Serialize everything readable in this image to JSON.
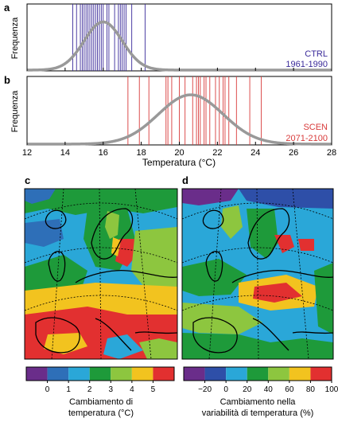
{
  "panels": {
    "a": {
      "label": "a",
      "ylabel": "Frequenza",
      "annotation_line1": "CTRL",
      "annotation_line2": "1961-1990",
      "color": "#3a2a9a"
    },
    "b": {
      "label": "b",
      "ylabel": "Frequenza",
      "annotation_line1": "SCEN",
      "annotation_line2": "2071-2100",
      "color": "#d83a3a"
    },
    "c": {
      "label": "c",
      "legend_title_line1": "Cambiamento di",
      "legend_title_line2": "temperatura  (°C)"
    },
    "d": {
      "label": "d",
      "legend_title_line1": "Cambiamento nella",
      "legend_title_line2": "variabilità di temperatura (%)"
    }
  },
  "chart_data": [
    {
      "type": "histogram-lines",
      "panel": "a",
      "xlim": [
        12,
        28
      ],
      "xticks": [
        12,
        14,
        16,
        18,
        20,
        22,
        24,
        26,
        28
      ],
      "ylabel": "Frequenza",
      "line_color": "#3a2a9a",
      "curve_color": "#999999",
      "values": [
        14.4,
        14.6,
        14.8,
        14.9,
        15.0,
        15.1,
        15.2,
        15.3,
        15.4,
        15.5,
        15.6,
        15.7,
        15.8,
        15.9,
        16.0,
        16.2,
        16.3,
        16.6,
        16.8,
        16.9,
        17.0,
        17.1,
        17.2,
        17.5,
        18.2
      ],
      "fit": {
        "mean": 16.0,
        "sd": 1.0
      }
    },
    {
      "type": "histogram-lines",
      "panel": "b",
      "xlim": [
        12,
        28
      ],
      "xticks": [
        12,
        14,
        16,
        18,
        20,
        22,
        24,
        26,
        28
      ],
      "xticklabels": [
        "12",
        "14",
        "16",
        "18",
        "20",
        "22",
        "24",
        "26",
        "28"
      ],
      "xlabel": "Temperatura  (°C)",
      "ylabel": "Frequenza",
      "line_color": "#d83a3a",
      "curve_color": "#999999",
      "values": [
        17.3,
        17.9,
        18.4,
        19.3,
        19.4,
        19.6,
        20.0,
        20.3,
        20.7,
        20.9,
        21.0,
        21.1,
        21.3,
        21.4,
        21.6,
        21.9,
        22.1,
        22.3,
        22.4,
        22.6,
        23.0,
        23.7,
        24.3
      ],
      "fit": {
        "mean": 20.6,
        "sd": 1.7
      }
    },
    {
      "type": "heatmap",
      "panel": "c",
      "title": "",
      "colorbar": {
        "ticks": [
          "0",
          "1",
          "2",
          "3",
          "4",
          "5"
        ],
        "colors": [
          "#6a2d8a",
          "#2e6fb8",
          "#2aa7d8",
          "#1e9a3a",
          "#8dc63f",
          "#f2c31f",
          "#e23030"
        ]
      }
    },
    {
      "type": "heatmap",
      "panel": "d",
      "title": "",
      "colorbar": {
        "ticks": [
          "−20",
          "0",
          "20",
          "40",
          "60",
          "80",
          "100"
        ],
        "colors": [
          "#6a2d8a",
          "#2e4fa8",
          "#2aa7d8",
          "#1e9a3a",
          "#8dc63f",
          "#f2c31f",
          "#e23030"
        ]
      }
    }
  ]
}
